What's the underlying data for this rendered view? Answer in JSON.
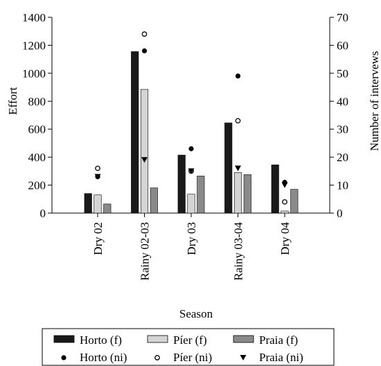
{
  "chart_data": {
    "type": "bar",
    "xlabel": "Season",
    "ylabel_left": "Effort",
    "ylabel_right": "Number of intervews",
    "categories": [
      "Dry 02",
      "Rainy 02-03",
      "Dry 03",
      "Rainy 03-04",
      "Dry 04"
    ],
    "ylim_left": [
      0,
      1400
    ],
    "yticks_left": [
      0,
      200,
      400,
      600,
      800,
      1000,
      1200,
      1400
    ],
    "ylim_right": [
      0,
      70
    ],
    "yticks_right": [
      0,
      10,
      20,
      30,
      40,
      50,
      60,
      70
    ],
    "grid": false,
    "legend_position": "bottom",
    "bar_series": [
      {
        "name": "Horto (f)",
        "color": "#1a1a1a",
        "values": [
          140,
          1155,
          415,
          645,
          345
        ]
      },
      {
        "name": "Píer (f)",
        "color": "#d4d4d4",
        "values": [
          130,
          885,
          135,
          290,
          15
        ]
      },
      {
        "name": "Praia (f)",
        "color": "#8a8a8a",
        "values": [
          65,
          180,
          265,
          275,
          170
        ]
      }
    ],
    "point_series": [
      {
        "name": "Horto (ni)",
        "marker": "filled-circle",
        "values": [
          13,
          58,
          23,
          49,
          11
        ]
      },
      {
        "name": "Píer (ni)",
        "marker": "open-circle",
        "values": [
          16,
          64,
          15,
          33,
          4
        ]
      },
      {
        "name": "Praia (ni)",
        "marker": "down-triangle",
        "values": [
          13,
          19,
          15,
          16,
          10
        ]
      }
    ]
  }
}
